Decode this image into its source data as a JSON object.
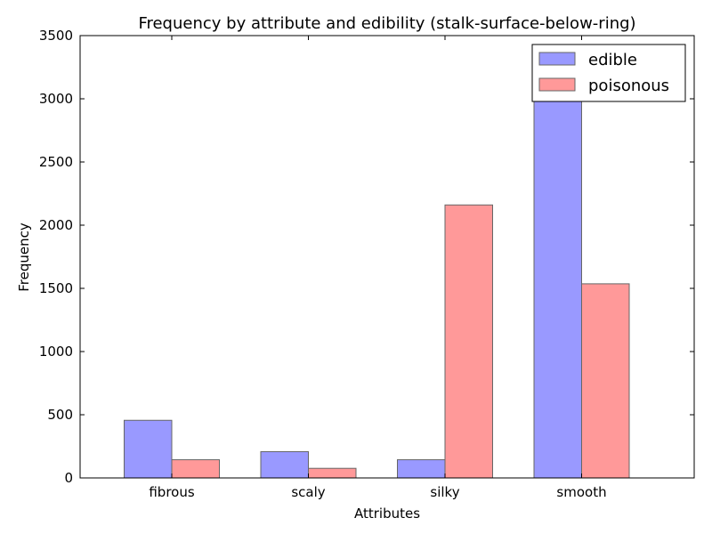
{
  "chart_data": {
    "type": "bar",
    "title": "Frequency by attribute and edibility (stalk-surface-below-ring)",
    "xlabel": "Attributes",
    "ylabel": "Frequency",
    "categories": [
      "fibrous",
      "scaly",
      "silky",
      "smooth"
    ],
    "series": [
      {
        "name": "edible",
        "values": [
          456,
          208,
          144,
          3400
        ],
        "color": "#9999ff"
      },
      {
        "name": "poisonous",
        "values": [
          144,
          76,
          2160,
          1536
        ],
        "color": "#ff9999"
      }
    ],
    "ylim": [
      0,
      3500
    ],
    "yticks": [
      "0",
      "500",
      "1000",
      "1500",
      "2000",
      "2500",
      "3000",
      "3500"
    ],
    "grid": false,
    "legend_position": "top-right"
  }
}
